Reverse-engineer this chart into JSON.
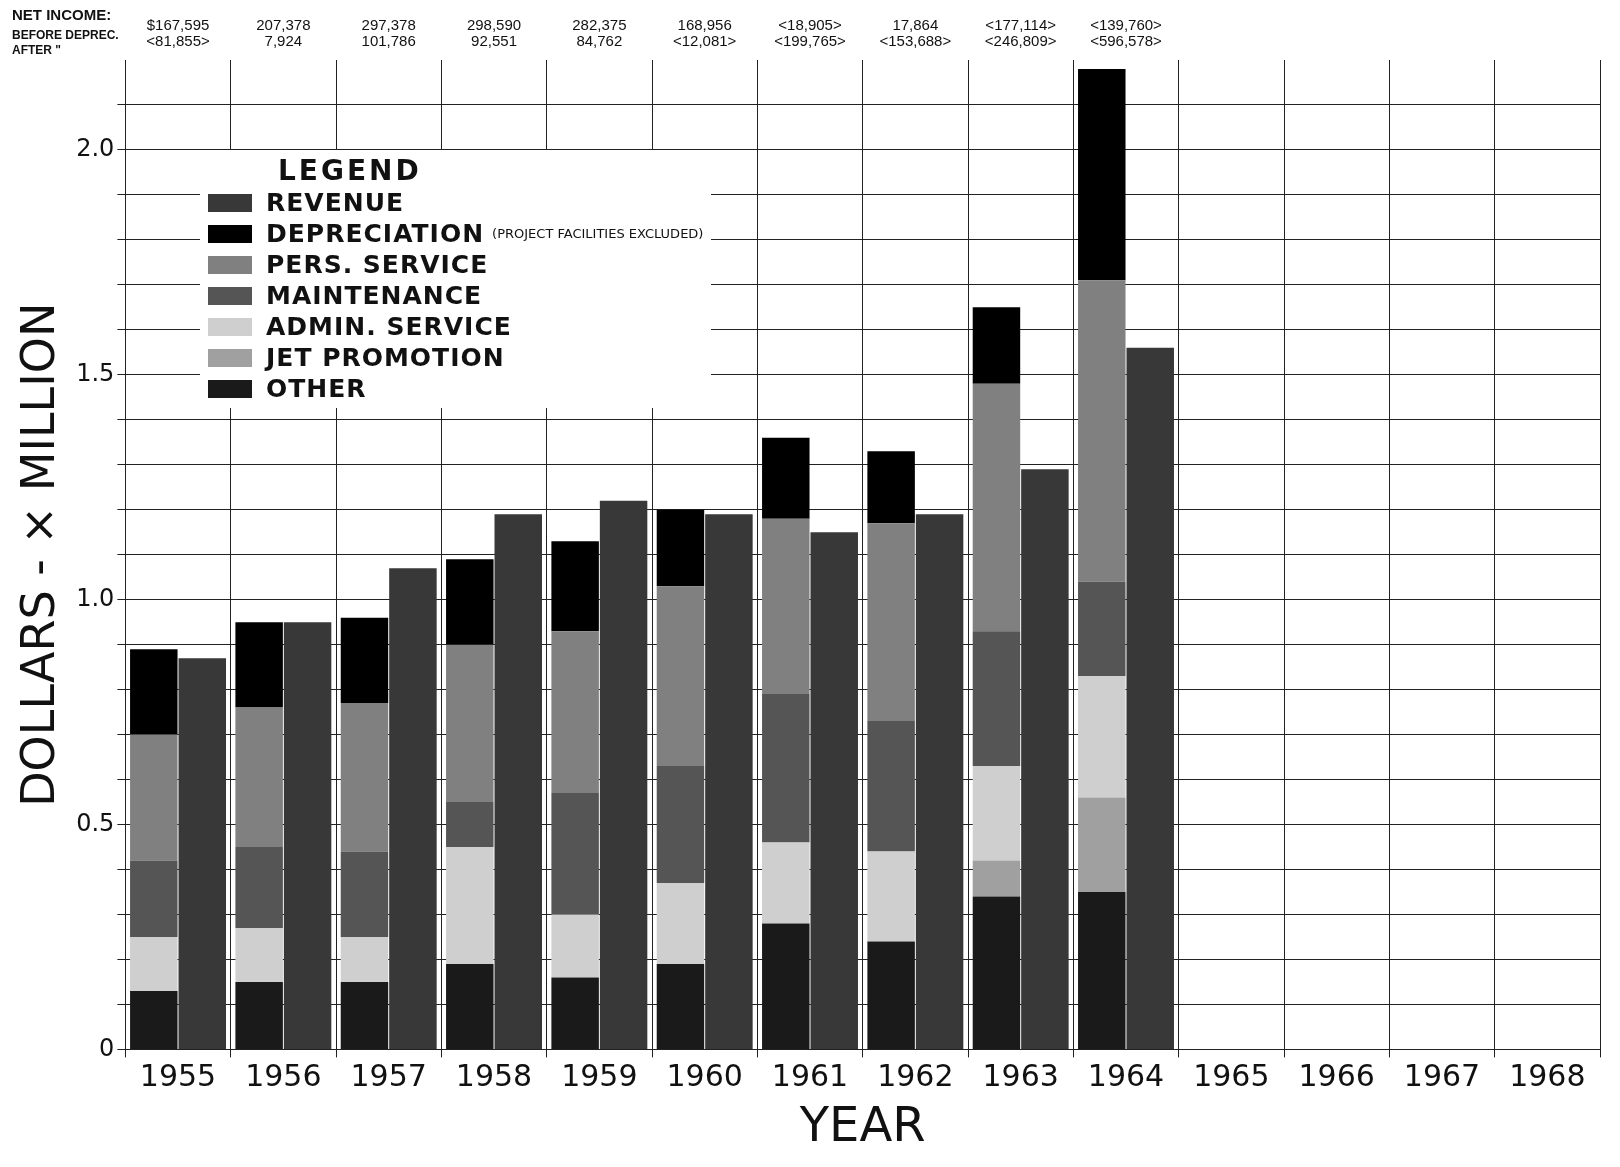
{
  "chart_data": {
    "type": "bar",
    "xlabel": "YEAR",
    "ylabel": "DOLLARS - × MILLION",
    "legend_title": "LEGEND",
    "legend": "top left",
    "grid": true,
    "categories": [
      "1955",
      "1956",
      "1957",
      "1958",
      "1959",
      "1960",
      "1961",
      "1962",
      "1963",
      "1964",
      "1965",
      "1966",
      "1967",
      "1968"
    ],
    "ylim": [
      0,
      2.2
    ],
    "yticks": [
      0,
      {
        "value": 0.1,
        "label": null
      },
      {
        "value": 0.2,
        "label": null
      },
      {
        "value": 0.3,
        "label": null
      },
      {
        "value": 0.4,
        "label": null
      },
      0.5,
      {
        "value": 0.6,
        "label": null
      },
      {
        "value": 0.7,
        "label": null
      },
      {
        "value": 0.8,
        "label": null
      },
      {
        "value": 0.9,
        "label": null
      },
      {
        "value": 1,
        "label": "1.0"
      },
      {
        "value": 1.1,
        "label": null
      },
      {
        "value": 1.2,
        "label": null
      },
      {
        "value": 1.3,
        "label": null
      },
      {
        "value": 1.4,
        "label": null
      },
      1.5,
      {
        "value": 1.6,
        "label": null
      },
      {
        "value": 1.7,
        "label": null
      },
      {
        "value": 1.8,
        "label": null
      },
      {
        "value": 1.9,
        "label": null
      },
      {
        "value": 2,
        "label": "2.0"
      },
      {
        "value": 2.1,
        "label": null
      }
    ],
    "series": [
      {
        "name": "OTHER",
        "color": "#1a1a1a",
        "base": [
          0,
          0,
          0,
          0,
          0,
          0,
          0,
          0,
          0,
          0,
          null,
          null,
          null,
          null
        ],
        "values": [
          0.13,
          0.15,
          0.15,
          0.19,
          0.16,
          0.19,
          0.28,
          0.24,
          0.34,
          0.35,
          null,
          null,
          null,
          null
        ]
      },
      {
        "name": "JET PROMOTION",
        "color": "#a0a0a0",
        "base": [
          null,
          null,
          null,
          null,
          null,
          null,
          null,
          null,
          0.34,
          0.35,
          null,
          null,
          null,
          null
        ],
        "values": [
          null,
          null,
          null,
          null,
          null,
          null,
          null,
          null,
          0.08,
          0.21,
          null,
          null,
          null,
          null
        ]
      },
      {
        "name": "ADMIN. SERVICE",
        "color": "#cfcfcf",
        "base": [
          0.13,
          0.15,
          0.15,
          0.19,
          0.16,
          0.19,
          0.28,
          0.24,
          0.42,
          0.56,
          null,
          null,
          null,
          null
        ],
        "values": [
          0.12,
          0.12,
          0.1,
          0.26,
          0.14,
          0.18,
          0.18,
          0.2,
          0.21,
          0.27,
          null,
          null,
          null,
          null
        ]
      },
      {
        "name": "MAINTENANCE",
        "color": "#555555",
        "base": [
          0.25,
          0.27,
          0.25,
          0.45,
          0.3,
          0.37,
          0.46,
          0.44,
          0.63,
          0.83,
          null,
          null,
          null,
          null
        ],
        "values": [
          0.17,
          0.18,
          0.19,
          0.1,
          0.27,
          0.26,
          0.33,
          0.29,
          0.3,
          0.21,
          null,
          null,
          null,
          null
        ]
      },
      {
        "name": "PERS. SERVICE",
        "color": "#808080",
        "base": [
          0.42,
          0.45,
          0.44,
          0.55,
          0.57,
          0.63,
          0.79,
          0.73,
          0.93,
          1.04,
          null,
          null,
          null,
          null
        ],
        "values": [
          0.28,
          0.31,
          0.33,
          0.35,
          0.36,
          0.4,
          0.39,
          0.44,
          0.55,
          0.67,
          null,
          null,
          null,
          null
        ]
      },
      {
        "name": "DEPRECIATION (PROJECT FACILITIES EXCLUDED)",
        "color": "#000000",
        "base": [
          0.7,
          0.76,
          0.77,
          0.9,
          0.93,
          1.03,
          1.18,
          1.17,
          1.48,
          1.71,
          null,
          null,
          null,
          null
        ],
        "values": [
          0.19,
          0.19,
          0.19,
          0.19,
          0.2,
          0.17,
          0.18,
          0.16,
          0.17,
          0.47,
          null,
          null,
          null,
          null
        ]
      },
      {
        "name": "REVENUE",
        "color": "#383838",
        "values": [
          0.87,
          0.95,
          1.07,
          1.19,
          1.22,
          1.19,
          1.15,
          1.19,
          1.29,
          1.56,
          null,
          null,
          null,
          null
        ]
      }
    ],
    "annotations": [
      "NET INCOME:",
      "BEFORE DEPREC.",
      "AFTER \"",
      "$167,595",
      "<81,855>",
      "207,378",
      "7,924",
      "297,378",
      "101,786",
      "298,590",
      "92,551",
      "282,375",
      "84,762",
      "168,956",
      "<12,081>",
      "<18,905>",
      "<199,765>",
      "17,864",
      "<153,688>",
      "<177,114>",
      "<246,809>",
      "<139,760>",
      "<596,578>"
    ]
  }
}
